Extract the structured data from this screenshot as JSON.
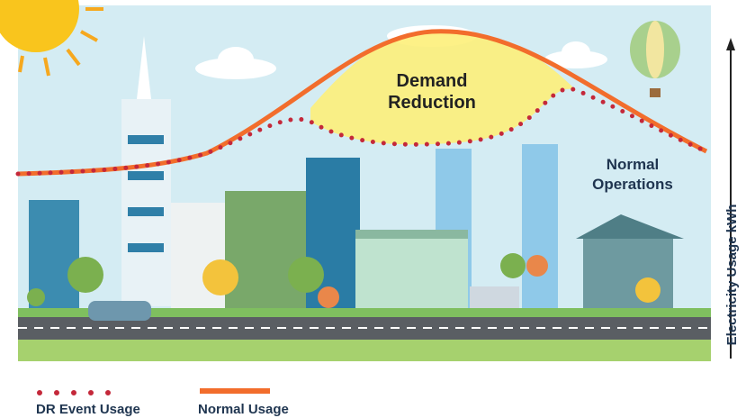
{
  "demand_reduction": [
    "Demand",
    "Reduction"
  ],
  "normal_operations": [
    "Normal",
    "Operations"
  ],
  "axis_label": "Electricity Usage kWh",
  "legend": [
    {
      "label": "DR Event Usage"
    },
    {
      "label": "Normal Usage"
    }
  ]
}
